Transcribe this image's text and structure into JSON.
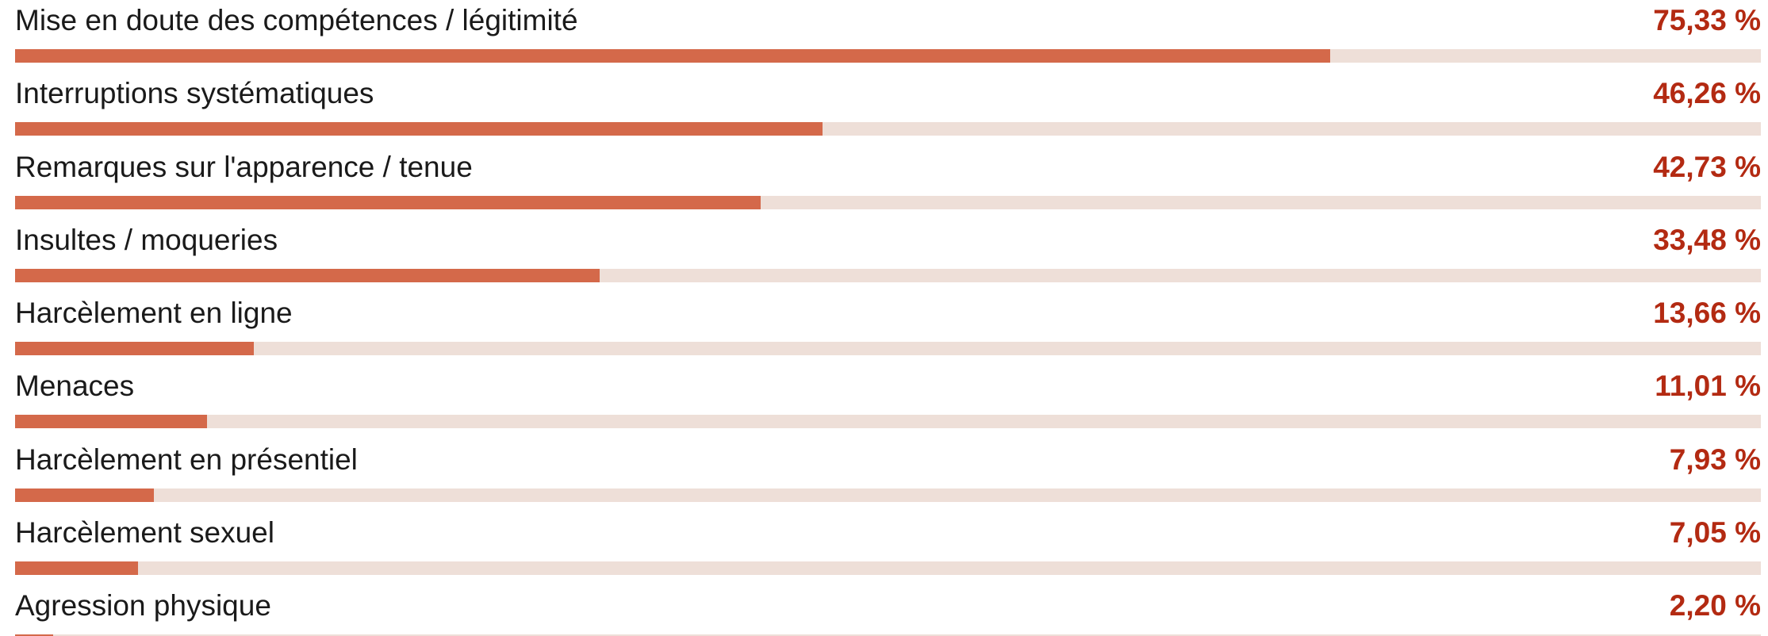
{
  "chart_data": {
    "type": "bar",
    "orientation": "horizontal",
    "xlim": [
      0,
      100
    ],
    "colors": {
      "bar": "#d4694a",
      "track": "#eedfd8",
      "value_text": "#b32a12",
      "label_text": "#1a1a1a"
    },
    "categories": [
      "Mise en doute des compétences / légitimité",
      "Interruptions systématiques",
      "Remarques sur l'apparence / tenue",
      "Insultes / moqueries",
      "Harcèlement en ligne",
      "Menaces",
      "Harcèlement en présentiel",
      "Harcèlement sexuel",
      "Agression physique"
    ],
    "values": [
      75.33,
      46.26,
      42.73,
      33.48,
      13.66,
      11.01,
      7.93,
      7.05,
      2.2
    ],
    "value_labels": [
      "75,33 %",
      "46,26 %",
      "42,73 %",
      "33,48 %",
      "13,66 %",
      "11,01 %",
      "7,93 %",
      "7,05 %",
      "2,20 %"
    ]
  }
}
